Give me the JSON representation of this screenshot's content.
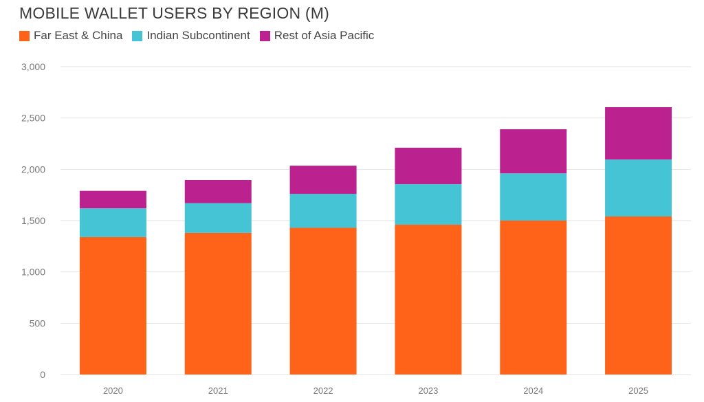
{
  "chart_data": {
    "type": "bar",
    "stacked": true,
    "title": "MOBILE WALLET USERS BY REGION (M)",
    "xlabel": "",
    "ylabel": "",
    "categories": [
      "2020",
      "2021",
      "2022",
      "2023",
      "2024",
      "2025"
    ],
    "series": [
      {
        "name": "Far East & China",
        "color": "#ff6319",
        "values": [
          1340,
          1380,
          1430,
          1460,
          1500,
          1540
        ]
      },
      {
        "name": "Indian Subcontinent",
        "color": "#45c4d6",
        "values": [
          280,
          290,
          330,
          395,
          460,
          555
        ]
      },
      {
        "name": "Rest of Asia Pacific",
        "color": "#bb228f",
        "values": [
          170,
          225,
          275,
          355,
          430,
          510
        ]
      }
    ],
    "ylim": [
      0,
      3000
    ],
    "yticks": [
      "0",
      "500",
      "1,000",
      "1,500",
      "2,000",
      "2,500",
      "3,000"
    ],
    "grid": true,
    "legend_position": "top-left"
  }
}
